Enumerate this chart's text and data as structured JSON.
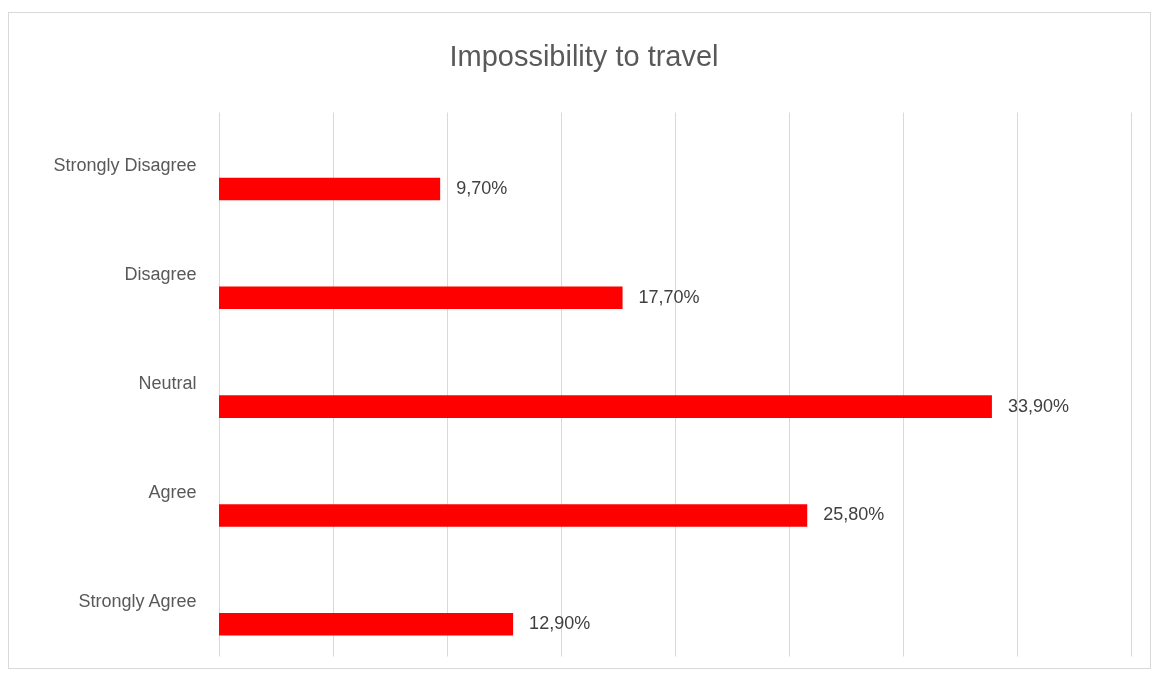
{
  "chart_data": {
    "type": "bar",
    "title": "Impossibility to travel",
    "orientation": "horizontal",
    "categories": [
      "Strongly Disagree",
      "Disagree",
      "Neutral",
      "Agree",
      "Strongly Agree"
    ],
    "values": [
      9.7,
      17.7,
      33.9,
      25.8,
      12.9
    ],
    "value_labels": [
      "9,70%",
      "17,70%",
      "33,90%",
      "25,80%",
      "12,90%"
    ],
    "color": "#ff0000",
    "xlim": [
      0,
      40
    ],
    "xticks": [
      {
        "value": 0,
        "label": null
      },
      {
        "value": 5,
        "label": null
      },
      {
        "value": 10,
        "label": null
      },
      {
        "value": 15,
        "label": null
      },
      {
        "value": 20,
        "label": null
      },
      {
        "value": 25,
        "label": null
      },
      {
        "value": 30,
        "label": null
      },
      {
        "value": 35,
        "label": null
      },
      {
        "value": 40,
        "label": null
      }
    ],
    "grid": "x",
    "tick_labels": "y"
  }
}
